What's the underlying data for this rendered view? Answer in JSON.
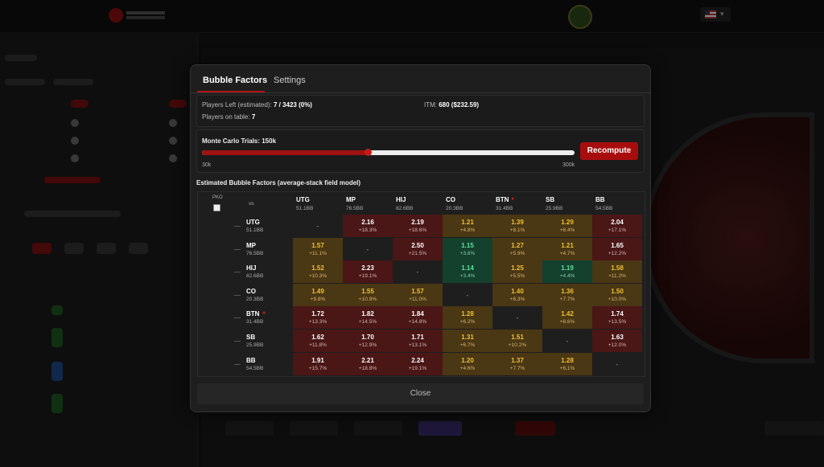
{
  "modal": {
    "tabs": [
      {
        "label": "Bubble Factors"
      },
      {
        "label": "Settings"
      }
    ],
    "info": {
      "players_left_label": "Players Left (estimated):",
      "players_left_value": "7 / 3423 (0%)",
      "itm_label": "ITM:",
      "itm_value": "680 ($232.59)",
      "players_on_table_label": "Players on table:",
      "players_on_table_value": "7"
    },
    "monte_carlo": {
      "label": "Monte Carlo Trials: 150k",
      "min_label": "30k",
      "max_label": "300k",
      "min": 30,
      "max": 300,
      "value": 150,
      "recompute_label": "Recompute"
    },
    "grid": {
      "title": "Estimated Bubble Factors (average-stack field model)",
      "pko_label": "PKO",
      "vs_label": "vs",
      "columns": [
        {
          "pos": "UTG",
          "bb": "51.1BB"
        },
        {
          "pos": "MP",
          "bb": "76.5BB"
        },
        {
          "pos": "HIJ",
          "bb": "82.6BB"
        },
        {
          "pos": "CO",
          "bb": "20.3BB"
        },
        {
          "pos": "BTN",
          "bb": "31.4BB"
        },
        {
          "pos": "SB",
          "bb": "25.9BB"
        },
        {
          "pos": "BB",
          "bb": "54.5BB"
        }
      ],
      "rows": [
        {
          "pos": "UTG",
          "bb": "51.1BB",
          "cells": [
            {
              "v": "-",
              "p": "",
              "c": "self"
            },
            {
              "v": "2.16",
              "p": "+18.3%",
              "c": "red"
            },
            {
              "v": "2.19",
              "p": "+18.6%",
              "c": "red"
            },
            {
              "v": "1.21",
              "p": "+4.8%",
              "c": "gold"
            },
            {
              "v": "1.39",
              "p": "+8.1%",
              "c": "gold"
            },
            {
              "v": "1.29",
              "p": "+6.4%",
              "c": "gold"
            },
            {
              "v": "2.04",
              "p": "+17.1%",
              "c": "red"
            }
          ]
        },
        {
          "pos": "MP",
          "bb": "76.5BB",
          "cells": [
            {
              "v": "1.57",
              "p": "+11.1%",
              "c": "gold"
            },
            {
              "v": "-",
              "p": "",
              "c": "self"
            },
            {
              "v": "2.50",
              "p": "+21.5%",
              "c": "red"
            },
            {
              "v": "1.15",
              "p": "+3.6%",
              "c": "green"
            },
            {
              "v": "1.27",
              "p": "+5.9%",
              "c": "gold"
            },
            {
              "v": "1.21",
              "p": "+4.7%",
              "c": "gold"
            },
            {
              "v": "1.65",
              "p": "+12.2%",
              "c": "red"
            }
          ]
        },
        {
          "pos": "HIJ",
          "bb": "82.6BB",
          "cells": [
            {
              "v": "1.52",
              "p": "+10.3%",
              "c": "gold"
            },
            {
              "v": "2.23",
              "p": "+19.1%",
              "c": "red"
            },
            {
              "v": "-",
              "p": "",
              "c": "self"
            },
            {
              "v": "1.14",
              "p": "+3.4%",
              "c": "green"
            },
            {
              "v": "1.25",
              "p": "+5.5%",
              "c": "gold"
            },
            {
              "v": "1.19",
              "p": "+4.4%",
              "c": "green"
            },
            {
              "v": "1.58",
              "p": "+11.2%",
              "c": "gold"
            }
          ]
        },
        {
          "pos": "CO",
          "bb": "20.3BB",
          "cells": [
            {
              "v": "1.49",
              "p": "+9.8%",
              "c": "gold"
            },
            {
              "v": "1.55",
              "p": "+10.9%",
              "c": "gold"
            },
            {
              "v": "1.57",
              "p": "+11.0%",
              "c": "gold"
            },
            {
              "v": "-",
              "p": "",
              "c": "self"
            },
            {
              "v": "1.40",
              "p": "+8.3%",
              "c": "gold"
            },
            {
              "v": "1.36",
              "p": "+7.7%",
              "c": "gold"
            },
            {
              "v": "1.50",
              "p": "+10.0%",
              "c": "gold"
            }
          ]
        },
        {
          "pos": "BTN",
          "bb": "31.4BB",
          "cells": [
            {
              "v": "1.72",
              "p": "+13.3%",
              "c": "red"
            },
            {
              "v": "1.82",
              "p": "+14.5%",
              "c": "red"
            },
            {
              "v": "1.84",
              "p": "+14.8%",
              "c": "red"
            },
            {
              "v": "1.28",
              "p": "+6.2%",
              "c": "gold"
            },
            {
              "v": "-",
              "p": "",
              "c": "self"
            },
            {
              "v": "1.42",
              "p": "+8.6%",
              "c": "gold"
            },
            {
              "v": "1.74",
              "p": "+13.5%",
              "c": "red"
            }
          ]
        },
        {
          "pos": "SB",
          "bb": "25.9BB",
          "cells": [
            {
              "v": "1.62",
              "p": "+11.8%",
              "c": "red"
            },
            {
              "v": "1.70",
              "p": "+12.9%",
              "c": "red"
            },
            {
              "v": "1.71",
              "p": "+13.1%",
              "c": "red"
            },
            {
              "v": "1.31",
              "p": "+6.7%",
              "c": "gold"
            },
            {
              "v": "1.51",
              "p": "+10.2%",
              "c": "gold"
            },
            {
              "v": "-",
              "p": "",
              "c": "self"
            },
            {
              "v": "1.63",
              "p": "+12.0%",
              "c": "red"
            }
          ]
        },
        {
          "pos": "BB",
          "bb": "54.5BB",
          "cells": [
            {
              "v": "1.91",
              "p": "+15.7%",
              "c": "red"
            },
            {
              "v": "2.21",
              "p": "+18.8%",
              "c": "red"
            },
            {
              "v": "2.24",
              "p": "+19.1%",
              "c": "red"
            },
            {
              "v": "1.20",
              "p": "+4.6%",
              "c": "gold"
            },
            {
              "v": "1.37",
              "p": "+7.7%",
              "c": "gold"
            },
            {
              "v": "1.28",
              "p": "+6.1%",
              "c": "gold"
            },
            {
              "v": "-",
              "p": "",
              "c": "self"
            }
          ]
        }
      ]
    },
    "close_label": "Close"
  },
  "colors": {
    "accent": "#a80d0d",
    "cell_red": "#4a1616",
    "cell_gold": "#4a3714",
    "cell_green": "#14402e"
  }
}
